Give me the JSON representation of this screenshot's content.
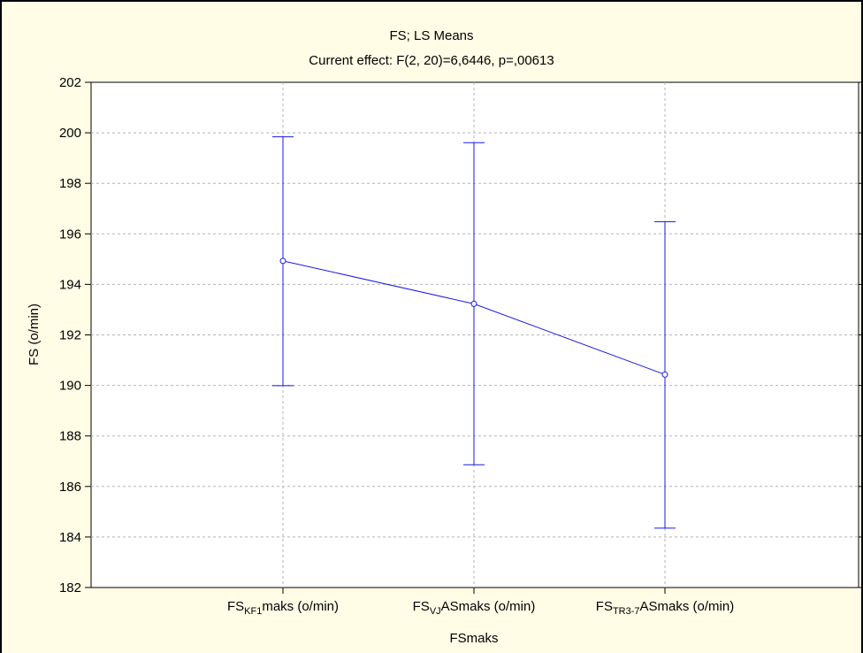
{
  "chart_data": {
    "type": "line",
    "title": "FS; LS Means",
    "subtitle": "Current effect: F(2, 20)=6,6446, p=,00613",
    "xlabel": "FSmaks",
    "ylabel": "FS (o/min)",
    "ylim": [
      182,
      202
    ],
    "yticks": [
      "182",
      "184",
      "186",
      "188",
      "190",
      "192",
      "194",
      "196",
      "198",
      "200",
      "202"
    ],
    "grid": true,
    "categories": [
      {
        "pre": "FS",
        "sub": "KF1",
        "post": "maks (o/min)"
      },
      {
        "pre": "FS",
        "sub": "VJ",
        "post": "ASmaks (o/min)"
      },
      {
        "pre": "FS",
        "sub": "TR3-7",
        "post": "ASmaks (o/min)"
      }
    ],
    "series": [
      {
        "values": [
          194.93,
          193.23,
          190.43
        ],
        "lower": [
          189.99,
          186.86,
          184.35
        ],
        "upper": [
          199.84,
          199.61,
          196.48
        ]
      }
    ],
    "colors": {
      "line": "#1a1ae6",
      "grid": "#b3b3b3",
      "background": "#fffde6",
      "plot_background": "#ffffff"
    }
  }
}
